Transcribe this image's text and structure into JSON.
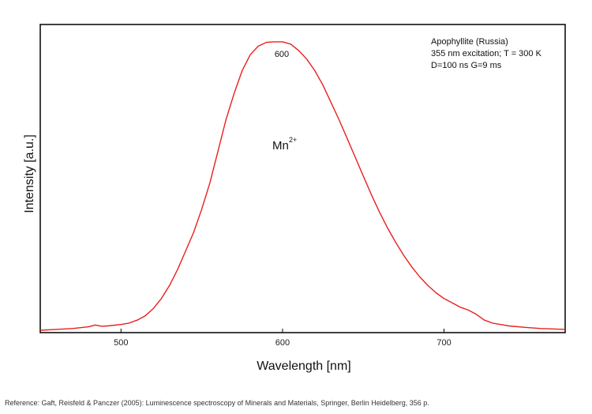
{
  "chart_data": {
    "type": "line",
    "xlabel": "Wavelength [nm]",
    "ylabel": "Intensity [a.u.]",
    "xlim": [
      450,
      775
    ],
    "ylim": [
      0,
      1.06
    ],
    "x_ticks": [
      500,
      600,
      700
    ],
    "y_ticks": [],
    "grid": false,
    "color": "#e8201e",
    "annotation_lines": [
      "Apophyllite (Russia)",
      "355 nm excitation; T = 300 K",
      "D=100 ns G=9 ms"
    ],
    "peak_label": "600",
    "ion_label": "Mn",
    "ion_superscript": "2+",
    "series": [
      {
        "x": [
          450,
          460,
          470,
          480,
          484,
          488,
          492,
          500,
          505,
          510,
          515,
          520,
          525,
          530,
          535,
          540,
          545,
          550,
          555,
          560,
          565,
          570,
          575,
          580,
          585,
          590,
          595,
          600,
          605,
          610,
          615,
          620,
          625,
          630,
          635,
          640,
          645,
          650,
          655,
          660,
          665,
          670,
          675,
          680,
          685,
          690,
          695,
          700,
          705,
          710,
          715,
          720,
          725,
          730,
          740,
          750,
          760,
          775
        ],
        "y": [
          0.0,
          0.003,
          0.006,
          0.012,
          0.018,
          0.014,
          0.015,
          0.02,
          0.025,
          0.035,
          0.05,
          0.075,
          0.11,
          0.155,
          0.21,
          0.275,
          0.34,
          0.42,
          0.51,
          0.62,
          0.73,
          0.82,
          0.9,
          0.955,
          0.985,
          0.998,
          1.0,
          1.0,
          0.992,
          0.97,
          0.94,
          0.9,
          0.85,
          0.79,
          0.73,
          0.665,
          0.6,
          0.535,
          0.47,
          0.41,
          0.355,
          0.305,
          0.26,
          0.22,
          0.185,
          0.155,
          0.13,
          0.11,
          0.095,
          0.08,
          0.07,
          0.055,
          0.035,
          0.025,
          0.015,
          0.01,
          0.006,
          0.003
        ]
      }
    ]
  },
  "reference": "Reference: Gaft, Reisfeld & Panczer (2005): Luminescence spectroscopy of Minerals and Materials, Springer, Berlin Heidelberg, 356 p."
}
